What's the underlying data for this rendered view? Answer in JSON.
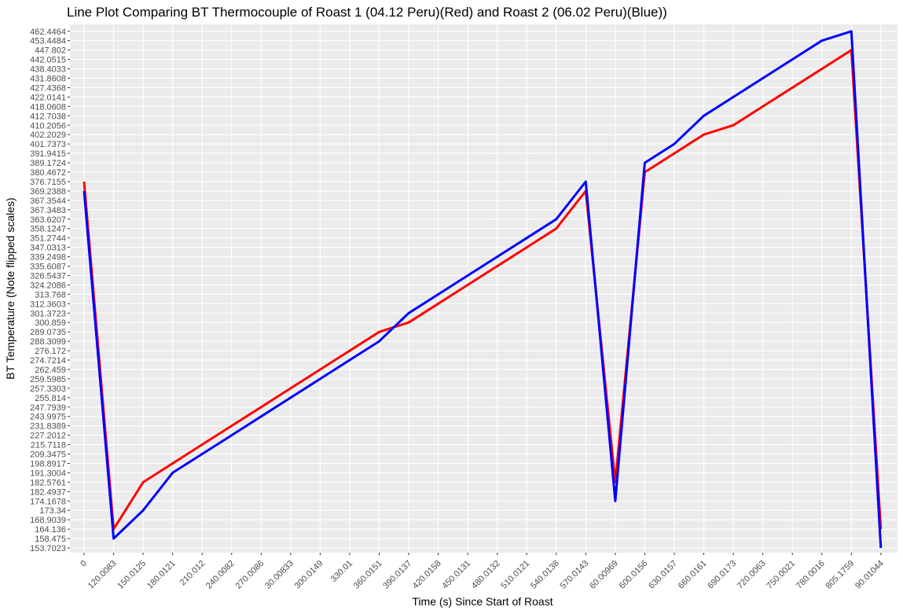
{
  "chart_data": {
    "type": "line",
    "title": "Line Plot Comparing BT Thermocouple of Roast 1 (04.12 Peru)(Red) and Roast 2 (06.02 Peru)(Blue))",
    "xlabel": "Time (s) Since Start of Roast",
    "ylabel": "BT Temperature (Note flipped scales)",
    "categories": [
      "0",
      "120.0083",
      "150.0125",
      "180.0121",
      "210.012",
      "240.0082",
      "270.0086",
      "30.00833",
      "300.0149",
      "330.01",
      "360.0151",
      "390.0137",
      "420.0158",
      "450.0131",
      "480.0132",
      "510.0121",
      "540.0138",
      "570.0143",
      "60.00969",
      "600.0156",
      "630.0157",
      "660.0161",
      "690.0173",
      "720.0063",
      "750.0021",
      "780.0016",
      "805.1759",
      "90.01044"
    ],
    "y_ticks": [
      "153.7023",
      "158.475",
      "164.136",
      "168.9039",
      "173.34",
      "174.1678",
      "182.4937",
      "182.5761",
      "191.3004",
      "198.8917",
      "209.3475",
      "215.7118",
      "227.2012",
      "231.8389",
      "243.9975",
      "247.7939",
      "255.814",
      "257.3303",
      "259.5985",
      "262.459",
      "274.7214",
      "276.172",
      "288.3099",
      "289.0735",
      "300.859",
      "301.3723",
      "312.3603",
      "313.768",
      "324.2086",
      "326.5437",
      "335.6087",
      "339.2498",
      "347.0313",
      "351.2744",
      "358.1247",
      "363.6207",
      "367.3483",
      "367.3544",
      "369.2388",
      "376.7155",
      "380.4672",
      "389.1724",
      "391.9415",
      "401.7373",
      "402.2029",
      "410.2056",
      "412.7038",
      "418.0608",
      "422.0141",
      "427.4368",
      "431.8608",
      "438.4033",
      "442.0515",
      "447.802",
      "453.4484",
      "462.4464"
    ],
    "series": [
      {
        "color": "#ff0000",
        "values": [
          39,
          2,
          7,
          9,
          11,
          13,
          15,
          17,
          19,
          21,
          23,
          24,
          26,
          28,
          30,
          32,
          34,
          38,
          7,
          40,
          42,
          44,
          45,
          47,
          49,
          51,
          53,
          2
        ]
      },
      {
        "color": "#0000ff",
        "values": [
          38,
          1,
          4,
          8,
          10,
          12,
          14,
          16,
          18,
          20,
          22,
          25,
          27,
          29,
          31,
          33,
          35,
          39,
          5,
          41,
          43,
          46,
          48,
          50,
          52,
          54,
          55,
          0
        ]
      }
    ],
    "grid": true,
    "legend": "none"
  }
}
